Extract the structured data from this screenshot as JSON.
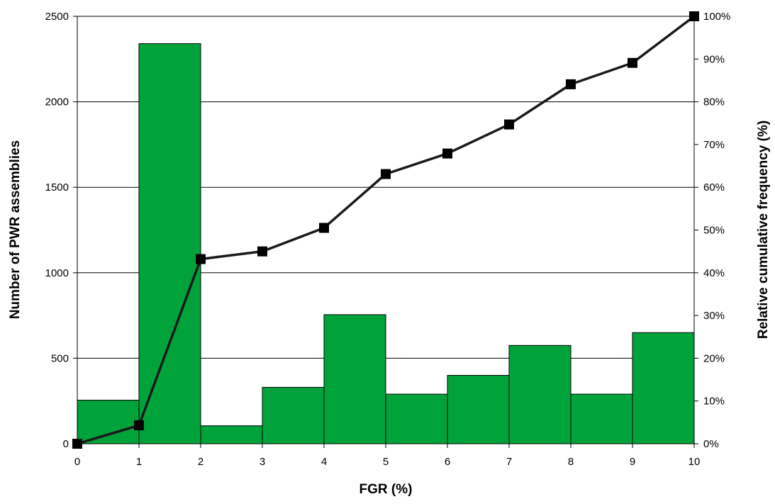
{
  "chart_data": {
    "type": "bar",
    "title": "",
    "xlabel": "FGR (%)",
    "ylabel": "Number of PWR assemblies",
    "y2label": "Relative cumulative frequency (%)",
    "x_ticks": [
      "0",
      "1",
      "2",
      "3",
      "4",
      "5",
      "6",
      "7",
      "8",
      "9",
      "10"
    ],
    "xlim": [
      0,
      10
    ],
    "ylim": [
      0,
      2500
    ],
    "y_ticks": [
      "0",
      "500",
      "1000",
      "1500",
      "2000",
      "2500"
    ],
    "y_tick_values": [
      0,
      500,
      1000,
      1500,
      2000,
      2500
    ],
    "y2lim": [
      0,
      100
    ],
    "y2_ticks": [
      "0%",
      "10%",
      "20%",
      "30%",
      "40%",
      "50%",
      "60%",
      "70%",
      "80%",
      "90%",
      "100%"
    ],
    "y2_tick_values": [
      0,
      10,
      20,
      30,
      40,
      50,
      60,
      70,
      80,
      90,
      100
    ],
    "grid": true,
    "legend": "none",
    "bars": {
      "bin_edges": [
        0,
        1,
        2,
        3,
        4,
        5,
        6,
        7,
        8,
        9,
        10
      ],
      "values": [
        255,
        2340,
        105,
        330,
        755,
        290,
        400,
        575,
        290,
        650
      ],
      "color": "#00a33a"
    },
    "line": {
      "x": [
        0,
        1,
        2,
        3,
        4,
        5,
        6,
        7,
        8,
        9,
        10
      ],
      "values": [
        0,
        4.3,
        43.2,
        45.0,
        50.5,
        63.1,
        67.9,
        74.7,
        84.1,
        89.1,
        100
      ],
      "axis": "right",
      "color": "#1a1a1a"
    }
  }
}
